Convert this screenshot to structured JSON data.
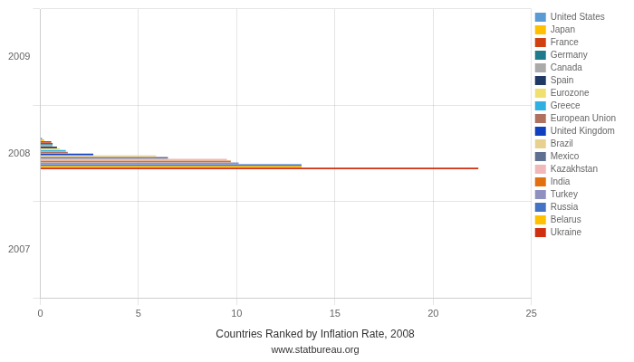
{
  "chart_data": {
    "type": "bar",
    "orientation": "horizontal",
    "title": "Countries Ranked by Inflation Rate, 2008",
    "subtitle": "www.statbureau.org",
    "x": [
      2008
    ],
    "series": [
      {
        "name": "United States",
        "color": "#5B9BD5",
        "values": [
          0.09
        ]
      },
      {
        "name": "Japan",
        "color": "#FFC000",
        "values": [
          0.2
        ]
      },
      {
        "name": "France",
        "color": "#D04010",
        "values": [
          0.56
        ]
      },
      {
        "name": "Germany",
        "color": "#1F7A8C",
        "values": [
          0.63
        ]
      },
      {
        "name": "Canada",
        "color": "#AAAAAA",
        "values": [
          0.63
        ]
      },
      {
        "name": "Spain",
        "color": "#1F3864",
        "values": [
          0.85
        ]
      },
      {
        "name": "Eurozone",
        "color": "#F0E070",
        "values": [
          1.0
        ]
      },
      {
        "name": "Greece",
        "color": "#30B0E0",
        "values": [
          1.3
        ]
      },
      {
        "name": "European Union",
        "color": "#B07060",
        "values": [
          1.4
        ]
      },
      {
        "name": "United Kingdom",
        "color": "#1040C0",
        "values": [
          2.7
        ]
      },
      {
        "name": "Brazil",
        "color": "#E8D090",
        "values": [
          5.9
        ]
      },
      {
        "name": "Mexico",
        "color": "#607090",
        "values": [
          6.5
        ]
      },
      {
        "name": "Kazakhstan",
        "color": "#F0B8B8",
        "values": [
          9.5
        ]
      },
      {
        "name": "India",
        "color": "#E07010",
        "values": [
          9.7
        ]
      },
      {
        "name": "Turkey",
        "color": "#9090C0",
        "values": [
          10.1
        ]
      },
      {
        "name": "Russia",
        "color": "#4472C4",
        "values": [
          13.3
        ]
      },
      {
        "name": "Belarus",
        "color": "#FFC000",
        "values": [
          13.3
        ]
      },
      {
        "name": "Ukraine",
        "color": "#D03010",
        "values": [
          22.3
        ]
      }
    ],
    "xlim": [
      0,
      25
    ],
    "xticks": [
      0,
      5,
      10,
      15,
      20,
      25
    ],
    "ylim": [
      2007,
      2009
    ],
    "yticks": [
      2007,
      2008,
      2009
    ],
    "grid": true,
    "legend": "right"
  }
}
